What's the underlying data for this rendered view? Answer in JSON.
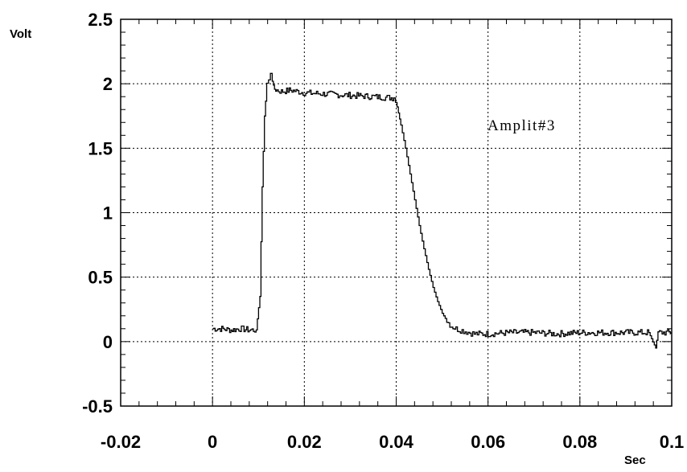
{
  "chart_data": {
    "type": "line",
    "title": "",
    "xlabel": "Sec",
    "ylabel": "Volt",
    "xlim": [
      -0.02,
      0.1
    ],
    "ylim": [
      -0.5,
      2.5
    ],
    "grid": true,
    "x_ticks": [
      -0.02,
      0,
      0.02,
      0.04,
      0.06,
      0.08,
      0.1
    ],
    "x_tick_labels": [
      "-0.02",
      "0",
      "0.02",
      "0.04",
      "0.06",
      "0.08",
      "0.1"
    ],
    "y_ticks": [
      -0.5,
      0,
      0.5,
      1,
      1.5,
      2,
      2.5
    ],
    "y_tick_labels": [
      "-0.5",
      "0",
      "0.5",
      "1",
      "1.5",
      "2",
      "2.5"
    ],
    "annotation": "Amplit#3",
    "series": [
      {
        "x": [
          0.0,
          0.002,
          0.004,
          0.006,
          0.008,
          0.0095,
          0.0103,
          0.0108,
          0.0113,
          0.0118,
          0.0122,
          0.0126,
          0.013,
          0.0135,
          0.014,
          0.015,
          0.017,
          0.02,
          0.025,
          0.03,
          0.035,
          0.0395,
          0.0402,
          0.041,
          0.042,
          0.043,
          0.044,
          0.045,
          0.046,
          0.047,
          0.048,
          0.049,
          0.05,
          0.051,
          0.052,
          0.053,
          0.054,
          0.055,
          0.056,
          0.057,
          0.058,
          0.06,
          0.065,
          0.07,
          0.075,
          0.08,
          0.085,
          0.09,
          0.095,
          0.0965,
          0.097,
          0.1
        ],
        "y": [
          0.1,
          0.1,
          0.09,
          0.1,
          0.09,
          0.09,
          0.35,
          1.2,
          1.75,
          1.98,
          2.03,
          2.08,
          2.02,
          1.96,
          1.95,
          1.94,
          1.95,
          1.93,
          1.92,
          1.91,
          1.9,
          1.89,
          1.82,
          1.68,
          1.5,
          1.3,
          1.1,
          0.9,
          0.72,
          0.56,
          0.42,
          0.31,
          0.22,
          0.16,
          0.12,
          0.1,
          0.09,
          0.08,
          0.07,
          0.06,
          0.06,
          0.06,
          0.07,
          0.07,
          0.06,
          0.07,
          0.07,
          0.07,
          0.07,
          -0.05,
          0.07,
          0.07
        ]
      }
    ]
  }
}
